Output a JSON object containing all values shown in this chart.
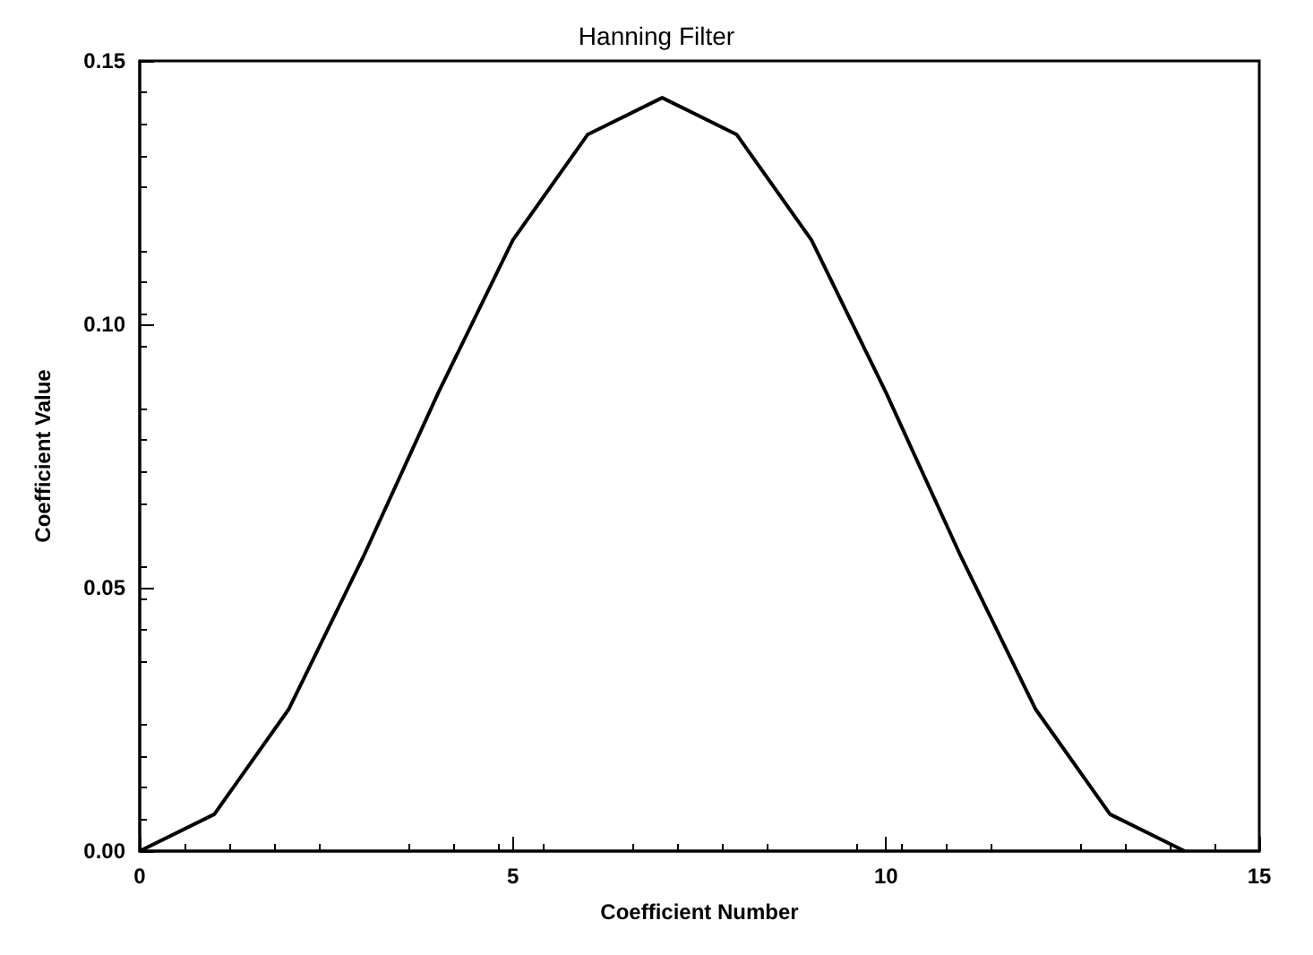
{
  "chart_data": {
    "type": "line",
    "title": "Hanning Filter",
    "xlabel": "Coefficient Number",
    "ylabel": "Coefficient Value",
    "x": [
      0,
      1,
      2,
      3,
      4,
      5,
      6,
      7,
      8,
      9,
      10,
      11,
      12,
      13,
      14
    ],
    "series": [
      {
        "color": "#000000",
        "values": [
          0,
          0.007,
          0.027,
          0.056,
          0.087,
          0.116,
          0.136,
          0.143,
          0.136,
          0.116,
          0.087,
          0.056,
          0.027,
          0.007,
          0
        ]
      }
    ],
    "xlim": [
      0,
      15
    ],
    "xticks": [
      0,
      5,
      10,
      15
    ],
    "ylim": [
      0,
      0.15
    ],
    "yticks": [
      {
        "value": 0,
        "label": "0.00"
      },
      {
        "value": 0.05,
        "label": "0.05"
      },
      {
        "value": 0.1,
        "label": "0.10"
      },
      {
        "value": 0.15,
        "label": "0.15"
      }
    ],
    "grid": false,
    "marker": "none",
    "line_style": "solid"
  }
}
